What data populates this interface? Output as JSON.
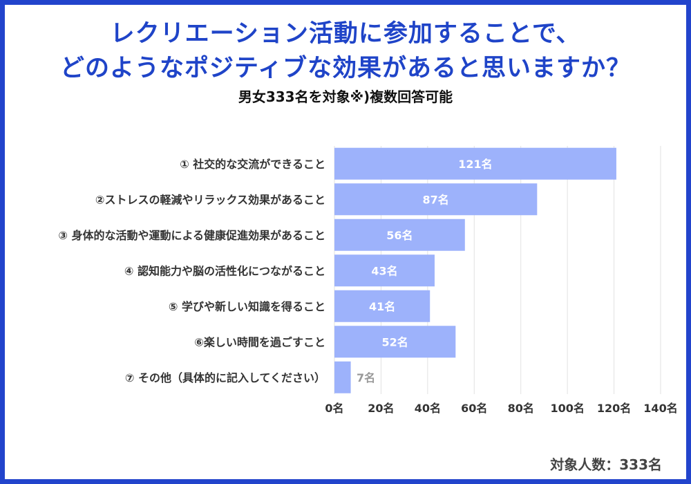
{
  "title": {
    "line1": "レクリエーション活動に参加することで、",
    "line2": "どのようなポジティブな効果があると思いますか？"
  },
  "subtitle": "男女333名を対象※)複数回答可能",
  "footer": "対象人数：333名",
  "colors": {
    "bar": "#9db2fb",
    "title": "#1f44c8",
    "frame": "#2244cc",
    "grid": "#e2e2e2"
  },
  "chart_data": {
    "type": "bar",
    "orientation": "horizontal",
    "unit": "名",
    "categories": [
      "① 社交的な交流ができること",
      "②ストレスの軽減やリラックス効果があること",
      "③ 身体的な活動や運動による健康促進効果があること",
      "④ 認知能力や脳の活性化につながること",
      "⑤ 学びや新しい知識を得ること",
      "⑥楽しい時間を過ごすこと",
      "⑦ その他（具体的に記入してください）"
    ],
    "values": [
      121,
      87,
      56,
      43,
      41,
      52,
      7
    ],
    "value_labels": [
      "121名",
      "87名",
      "56名",
      "43名",
      "41名",
      "52名",
      "7名"
    ],
    "xlim": [
      0,
      140
    ],
    "xticks": [
      0,
      20,
      40,
      60,
      80,
      100,
      120,
      140
    ],
    "xtick_labels": [
      "0名",
      "20名",
      "40名",
      "60名",
      "80名",
      "100名",
      "120名",
      "140名"
    ],
    "grid": true
  }
}
